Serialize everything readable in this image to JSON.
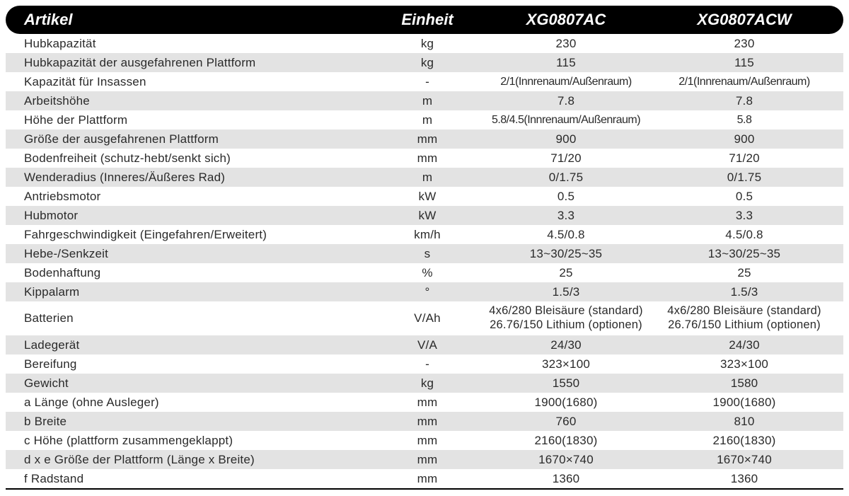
{
  "table": {
    "header": {
      "article": "Artikel",
      "unit": "Einheit",
      "model_a": "XG0807AC",
      "model_b": "XG0807ACW"
    },
    "header_bg": "#000000",
    "header_fg": "#ffffff",
    "row_bg_alt": "#e3e3e3",
    "row_bg": "#ffffff",
    "text_color": "#2a2a2a",
    "font_size_header": 22,
    "font_size_body": 17,
    "rows": [
      {
        "article": "Hubkapazität",
        "unit": "kg",
        "a": "230",
        "b": "230",
        "alt": false
      },
      {
        "article": "Hubkapazität der ausgefahrenen Plattform",
        "unit": "kg",
        "a": "115",
        "b": "115",
        "alt": true
      },
      {
        "article": "Kapazität für Insassen",
        "unit": "-",
        "a": "2/1(Innrenaum/Außenraum)",
        "b": "2/1(Innrenaum/Außenraum)",
        "alt": false,
        "condensed": true
      },
      {
        "article": "Arbeitshöhe",
        "unit": "m",
        "a": "7.8",
        "b": "7.8",
        "alt": true
      },
      {
        "article": "Höhe der Plattform",
        "unit": "m",
        "a": "5.8/4.5(Innrenaum/Außenraum)",
        "b": "5.8",
        "alt": false,
        "condensed": true
      },
      {
        "article": "Größe der ausgefahrenen Plattform",
        "unit": "mm",
        "a": "900",
        "b": "900",
        "alt": true
      },
      {
        "article": "Bodenfreiheit (schutz-hebt/senkt sich)",
        "unit": "mm",
        "a": "71/20",
        "b": "71/20",
        "alt": false
      },
      {
        "article": "Wenderadius (Inneres/Äußeres Rad)",
        "unit": "m",
        "a": "0/1.75",
        "b": "0/1.75",
        "alt": true
      },
      {
        "article": "Antriebsmotor",
        "unit": "kW",
        "a": "0.5",
        "b": "0.5",
        "alt": false
      },
      {
        "article": "Hubmotor",
        "unit": "kW",
        "a": "3.3",
        "b": "3.3",
        "alt": true
      },
      {
        "article": "Fahrgeschwindigkeit (Eingefahren/Erweitert)",
        "unit": "km/h",
        "a": "4.5/0.8",
        "b": "4.5/0.8",
        "alt": false
      },
      {
        "article": "Hebe-/Senkzeit",
        "unit": "s",
        "a": "13~30/25~35",
        "b": "13~30/25~35",
        "alt": true
      },
      {
        "article": "Bodenhaftung",
        "unit": "%",
        "a": "25",
        "b": "25",
        "alt": false
      },
      {
        "article": "Kippalarm",
        "unit": "°",
        "a": "1.5/3",
        "b": "1.5/3",
        "alt": true
      },
      {
        "article": "Batterien",
        "unit": "V/Ah",
        "a": "4x6/280 Bleisäure (standard)\n26.76/150 Lithium (optionen)",
        "b": "4x6/280 Bleisäure (standard)\n26.76/150 Lithium (optionen)",
        "alt": false,
        "tall": true
      },
      {
        "article": "Ladegerät",
        "unit": "V/A",
        "a": "24/30",
        "b": "24/30",
        "alt": true
      },
      {
        "article": "Bereifung",
        "unit": "-",
        "a": "323×100",
        "b": "323×100",
        "alt": false
      },
      {
        "article": "Gewicht",
        "unit": "kg",
        "a": "1550",
        "b": "1580",
        "alt": true
      },
      {
        "article": "a Länge (ohne Ausleger)",
        "unit": "mm",
        "a": "1900(1680)",
        "b": "1900(1680)",
        "alt": false
      },
      {
        "article": "b Breite",
        "unit": "mm",
        "a": "760",
        "b": "810",
        "alt": true
      },
      {
        "article": "c Höhe (plattform zusammengeklappt)",
        "unit": "mm",
        "a": "2160(1830)",
        "b": "2160(1830)",
        "alt": false
      },
      {
        "article": "d x e  Größe der Plattform (Länge x Breite)",
        "unit": "mm",
        "a": "1670×740",
        "b": "1670×740",
        "alt": true
      },
      {
        "article": "f Radstand",
        "unit": "mm",
        "a": "1360",
        "b": "1360",
        "alt": false
      }
    ]
  }
}
